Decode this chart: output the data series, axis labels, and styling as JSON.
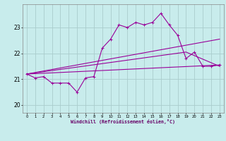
{
  "xlabel": "Windchill (Refroidissement éolien,°C)",
  "bg_color": "#c8ecec",
  "line_color": "#990099",
  "grid_color": "#aacccc",
  "xlim": [
    -0.5,
    23.5
  ],
  "ylim": [
    19.7,
    23.9
  ],
  "xticks": [
    0,
    1,
    2,
    3,
    4,
    5,
    6,
    7,
    8,
    9,
    10,
    11,
    12,
    13,
    14,
    15,
    16,
    17,
    18,
    19,
    20,
    21,
    22,
    23
  ],
  "yticks": [
    20,
    21,
    22,
    23
  ],
  "line1": {
    "x": [
      0,
      1,
      2,
      3,
      4,
      5,
      6,
      7,
      8,
      9,
      10,
      11,
      12,
      13,
      14,
      15,
      16,
      17,
      18,
      19,
      20,
      21,
      22,
      23
    ],
    "y": [
      21.2,
      21.05,
      21.1,
      20.85,
      20.85,
      20.85,
      20.5,
      21.05,
      21.1,
      22.2,
      22.55,
      23.1,
      23.0,
      23.2,
      23.1,
      23.2,
      23.55,
      23.1,
      22.7,
      21.8,
      22.05,
      21.5,
      21.5,
      21.55
    ]
  },
  "line2": {
    "x": [
      0,
      23
    ],
    "y": [
      21.2,
      22.55
    ]
  },
  "line3": {
    "x": [
      0,
      19,
      23
    ],
    "y": [
      21.2,
      22.05,
      21.5
    ]
  },
  "line4": {
    "x": [
      0,
      23
    ],
    "y": [
      21.2,
      21.55
    ]
  }
}
